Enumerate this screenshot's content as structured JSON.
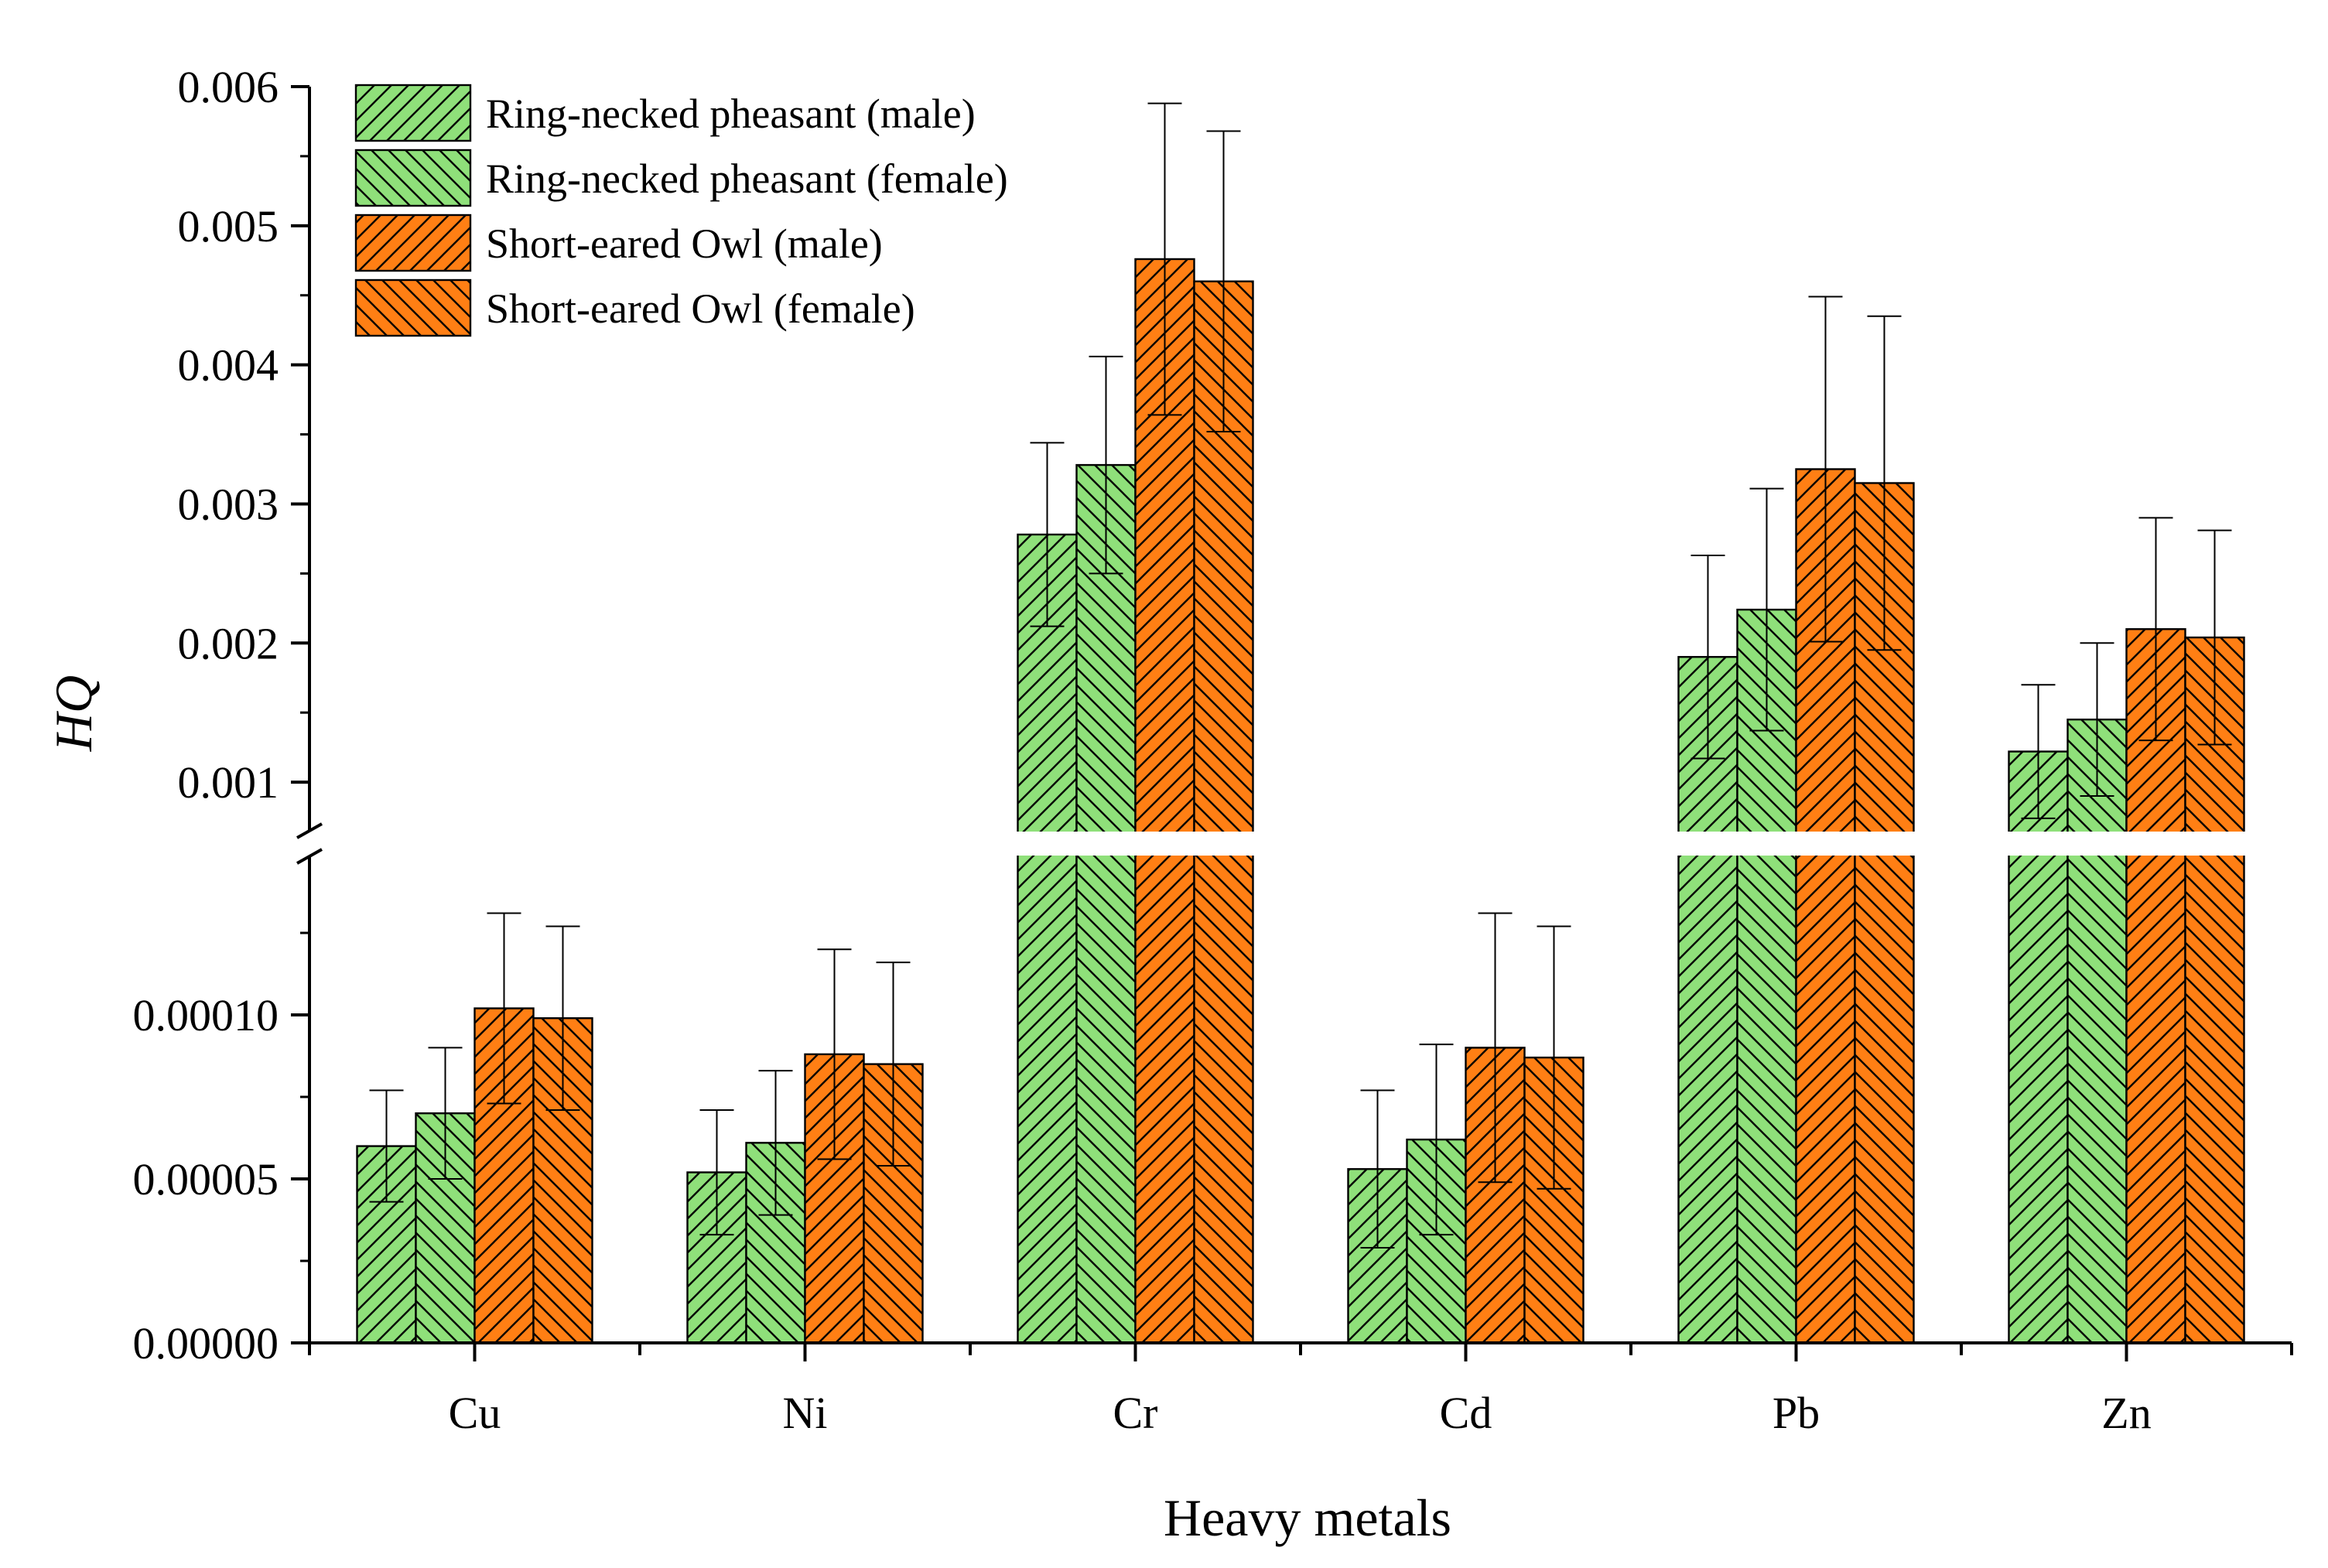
{
  "chart_data": {
    "type": "bar",
    "title": "",
    "xlabel": "Heavy metals",
    "ylabel": "HQ",
    "broken_axis": {
      "lower_range": [
        0,
        0.00015
      ],
      "upper_range": [
        0.0006,
        0.006
      ]
    },
    "upper_ticks": [
      "0.001",
      "0.002",
      "0.003",
      "0.004",
      "0.005",
      "0.006"
    ],
    "lower_ticks": [
      "0.00000",
      "0.00005",
      "0.00010"
    ],
    "categories": [
      "Cu",
      "Ni",
      "Cr",
      "Cd",
      "Pb",
      "Zn"
    ],
    "legend_position": "top-left",
    "series": [
      {
        "name": "Ring-necked pheasant (male)",
        "color": "#8FE07A",
        "hatch": "forward",
        "values": [
          6e-05,
          5.2e-05,
          0.00278,
          5.3e-05,
          0.0019,
          0.00122
        ],
        "errors": [
          1.7e-05,
          1.9e-05,
          0.00066,
          2.4e-05,
          0.00073,
          0.00048
        ]
      },
      {
        "name": "Ring-necked pheasant (female)",
        "color": "#8FE07A",
        "hatch": "backward",
        "values": [
          7e-05,
          6.1e-05,
          0.00328,
          6.2e-05,
          0.00224,
          0.00145
        ],
        "errors": [
          2e-05,
          2.2e-05,
          0.00078,
          2.9e-05,
          0.00087,
          0.00055
        ]
      },
      {
        "name": "Short-eared Owl (male)",
        "color": "#FF7F14",
        "hatch": "forward",
        "values": [
          0.000102,
          8.8e-05,
          0.00476,
          9e-05,
          0.00325,
          0.0021
        ],
        "errors": [
          2.9e-05,
          3.2e-05,
          0.00112,
          4.1e-05,
          0.00124,
          0.0008
        ]
      },
      {
        "name": "Short-eared Owl (female)",
        "color": "#FF7F14",
        "hatch": "backward",
        "values": [
          9.9e-05,
          8.5e-05,
          0.0046,
          8.7e-05,
          0.00315,
          0.00204
        ],
        "errors": [
          2.8e-05,
          3.1e-05,
          0.00108,
          4e-05,
          0.0012,
          0.00077
        ]
      }
    ]
  }
}
